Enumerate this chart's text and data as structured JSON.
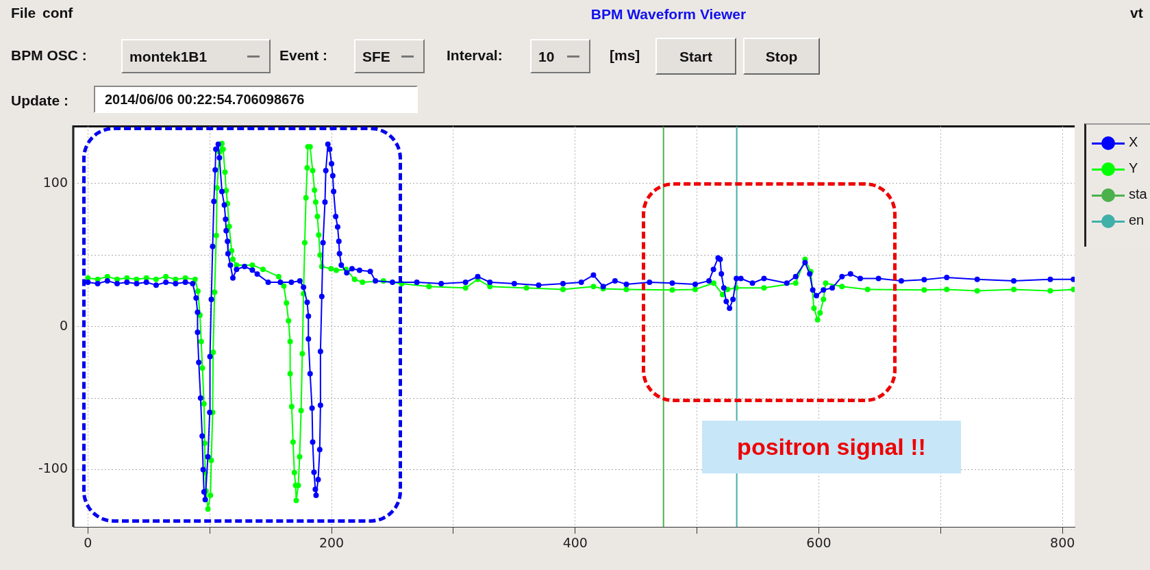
{
  "chart_data": {
    "type": "line",
    "title": "BPM Waveform Viewer",
    "annotations": [
      "File",
      "conf",
      "vt",
      "BPM OSC :",
      "montek1B1",
      "Event :",
      "SFE",
      "Interval:",
      "10",
      "[ms]",
      "Start",
      "Stop",
      "Update :",
      "2014/06/06 00:22:54.706098676",
      "positron signal !!"
    ],
    "xlim": [
      -12,
      810
    ],
    "xticks": [
      0,
      {
        "value": 100,
        "label": null
      },
      200,
      {
        "value": 300,
        "label": null
      },
      400,
      {
        "value": 500,
        "label": null
      },
      600,
      {
        "value": 700,
        "label": null
      },
      800
    ],
    "ylim": [
      -140,
      140
    ],
    "yticks": [
      -100,
      {
        "value": -50,
        "label": null
      },
      0,
      {
        "value": 50,
        "label": null
      },
      100
    ],
    "grid": true,
    "legend": "right",
    "marker": "circle",
    "series": [
      {
        "name": "X",
        "color": "#0000ff",
        "x": [
          0,
          8,
          16,
          24,
          32,
          40,
          48,
          56,
          64,
          72,
          80,
          86,
          88.8,
          90,
          90,
          91,
          92.5,
          93.8,
          94.6,
          95.3,
          96.3,
          98.5,
          100,
          100.2,
          101.3,
          102.4,
          103.4,
          104.5,
          105,
          107,
          108,
          110,
          112,
          113,
          113.5,
          114.6,
          115,
          117,
          119,
          122,
          128.6,
          135,
          139,
          148,
          158,
          167,
          174,
          177,
          180,
          181,
          181,
          182.4,
          184,
          184.5,
          185.6,
          186.7,
          187.3,
          189,
          190.3,
          190.9,
          190.9,
          192,
          193,
          194.6,
          195.3,
          197,
          198.5,
          200,
          201,
          201.7,
          203.4,
          205,
          206,
          206.5,
          208,
          212.5,
          216.8,
          223,
          231.8,
          236,
          250,
          270,
          290,
          310,
          320,
          330,
          350,
          370,
          390,
          405,
          415,
          423,
          432.7,
          442,
          461,
          479.7,
          498.5,
          509.8,
          513.5,
          517.3,
          519,
          520,
          522,
          524,
          526.7,
          529.5,
          532.3,
          536,
          545.5,
          555,
          573.7,
          581,
          588.7,
          592.5,
          595,
          598,
          603.8,
          611,
          619,
          626,
          634,
          649,
          667.7,
          686.5,
          705,
          730,
          760,
          790,
          809
        ],
        "values": [
          31,
          30,
          32,
          30,
          31,
          30,
          31,
          29,
          31,
          30,
          31,
          30,
          20,
          10,
          -4,
          -25,
          -50,
          -76.5,
          -100,
          -115.6,
          -121,
          -91,
          -60,
          -21,
          19,
          56,
          87.5,
          109.5,
          124,
          127.5,
          118,
          94.5,
          85,
          75,
          67,
          59.6,
          51,
          43,
          34,
          40,
          42,
          39.5,
          36.7,
          31,
          31,
          31,
          32,
          27.5,
          17,
          7.3,
          -8.6,
          -33,
          -57,
          -80.7,
          -101.8,
          -113.8,
          -118,
          -107,
          -86,
          -55,
          -17.4,
          21,
          58.7,
          87,
          109,
          127.5,
          124,
          113.8,
          105.5,
          94.5,
          77,
          69.7,
          59.6,
          51,
          43,
          37.6,
          40.4,
          39.4,
          38.5,
          32,
          31,
          31,
          30,
          31,
          35,
          31,
          30,
          29,
          30,
          31,
          36,
          28,
          32,
          29.6,
          31,
          30.4,
          29.6,
          32,
          40,
          48,
          47,
          36.8,
          27,
          17.6,
          12.8,
          19,
          33.6,
          33.6,
          30.4,
          33.6,
          30.4,
          35,
          44.8,
          36.8,
          25.6,
          21.6,
          25.6,
          27,
          35,
          36.8,
          33.6,
          33.6,
          32,
          32.8,
          34.4,
          33,
          32,
          33,
          33
        ]
      },
      {
        "name": "Y",
        "color": "#00ff00",
        "x": [
          0,
          8,
          16,
          24,
          32,
          40,
          48,
          56,
          64,
          72,
          80,
          88,
          90.3,
          92,
          93,
          94,
          95.3,
          95.9,
          96.3,
          97,
          98.5,
          100.6,
          101.3,
          102.4,
          102.8,
          104,
          105.4,
          106,
          108,
          110,
          111,
          112.5,
          113.5,
          114.6,
          116,
          118,
          119,
          122,
          135,
          143.7,
          156.6,
          160.8,
          163,
          164.7,
          166,
          166,
          167.3,
          168.4,
          169.5,
          170.5,
          171,
          172.7,
          173.8,
          175,
          176,
          177,
          178,
          179,
          180,
          180.6,
          182.4,
          184.5,
          186,
          187,
          188.4,
          189.5,
          190.6,
          192,
          199.6,
          203.9,
          212,
          218.9,
          225.4,
          242.6,
          257.6,
          280,
          310,
          320,
          330,
          360,
          390,
          415,
          423,
          442,
          479.7,
          498.5,
          513.7,
          521,
          525,
          532,
          555,
          581,
          588.7,
          593.4,
          596,
          599,
          601,
          603.8,
          605.6,
          619,
          640,
          686.5,
          705,
          730,
          760,
          790,
          809
        ],
        "values": [
          34,
          33,
          35,
          33,
          34,
          33,
          34,
          33,
          35,
          33,
          34,
          33,
          24.8,
          8,
          -10.5,
          -29,
          -54,
          -81.6,
          -102,
          -115,
          -127.5,
          -118,
          -93.6,
          -60,
          -18,
          24,
          63.7,
          97,
          122,
          128,
          124,
          108,
          95,
          86,
          70,
          53,
          47,
          43,
          43,
          40,
          35,
          28.4,
          16.5,
          4,
          -10.5,
          -33,
          -56,
          -80.7,
          -102,
          -111,
          -121.5,
          -111,
          -91,
          -58.7,
          -19,
          23,
          58.7,
          90,
          111,
          125.7,
          125.7,
          109,
          95.4,
          87,
          77,
          64,
          50,
          42,
          40.4,
          39.4,
          40,
          33,
          31,
          32,
          30,
          28,
          27,
          33,
          28,
          27,
          26,
          28,
          26.4,
          26,
          25.6,
          26,
          30.4,
          22.4,
          26,
          27,
          27,
          30.4,
          47,
          38.4,
          12.8,
          4.8,
          9.6,
          19,
          30.4,
          28,
          26,
          25.6,
          26,
          25,
          26,
          25,
          26
        ]
      },
      {
        "name": "sta",
        "color": "#4cb04c",
        "marker": "none",
        "x": [
          472.5,
          472.5
        ],
        "values": [
          -140,
          140
        ]
      },
      {
        "name": "en",
        "color": "#40b0a8",
        "marker": "none",
        "x": [
          532.6,
          532.6
        ],
        "values": [
          -140,
          140
        ]
      }
    ]
  }
}
